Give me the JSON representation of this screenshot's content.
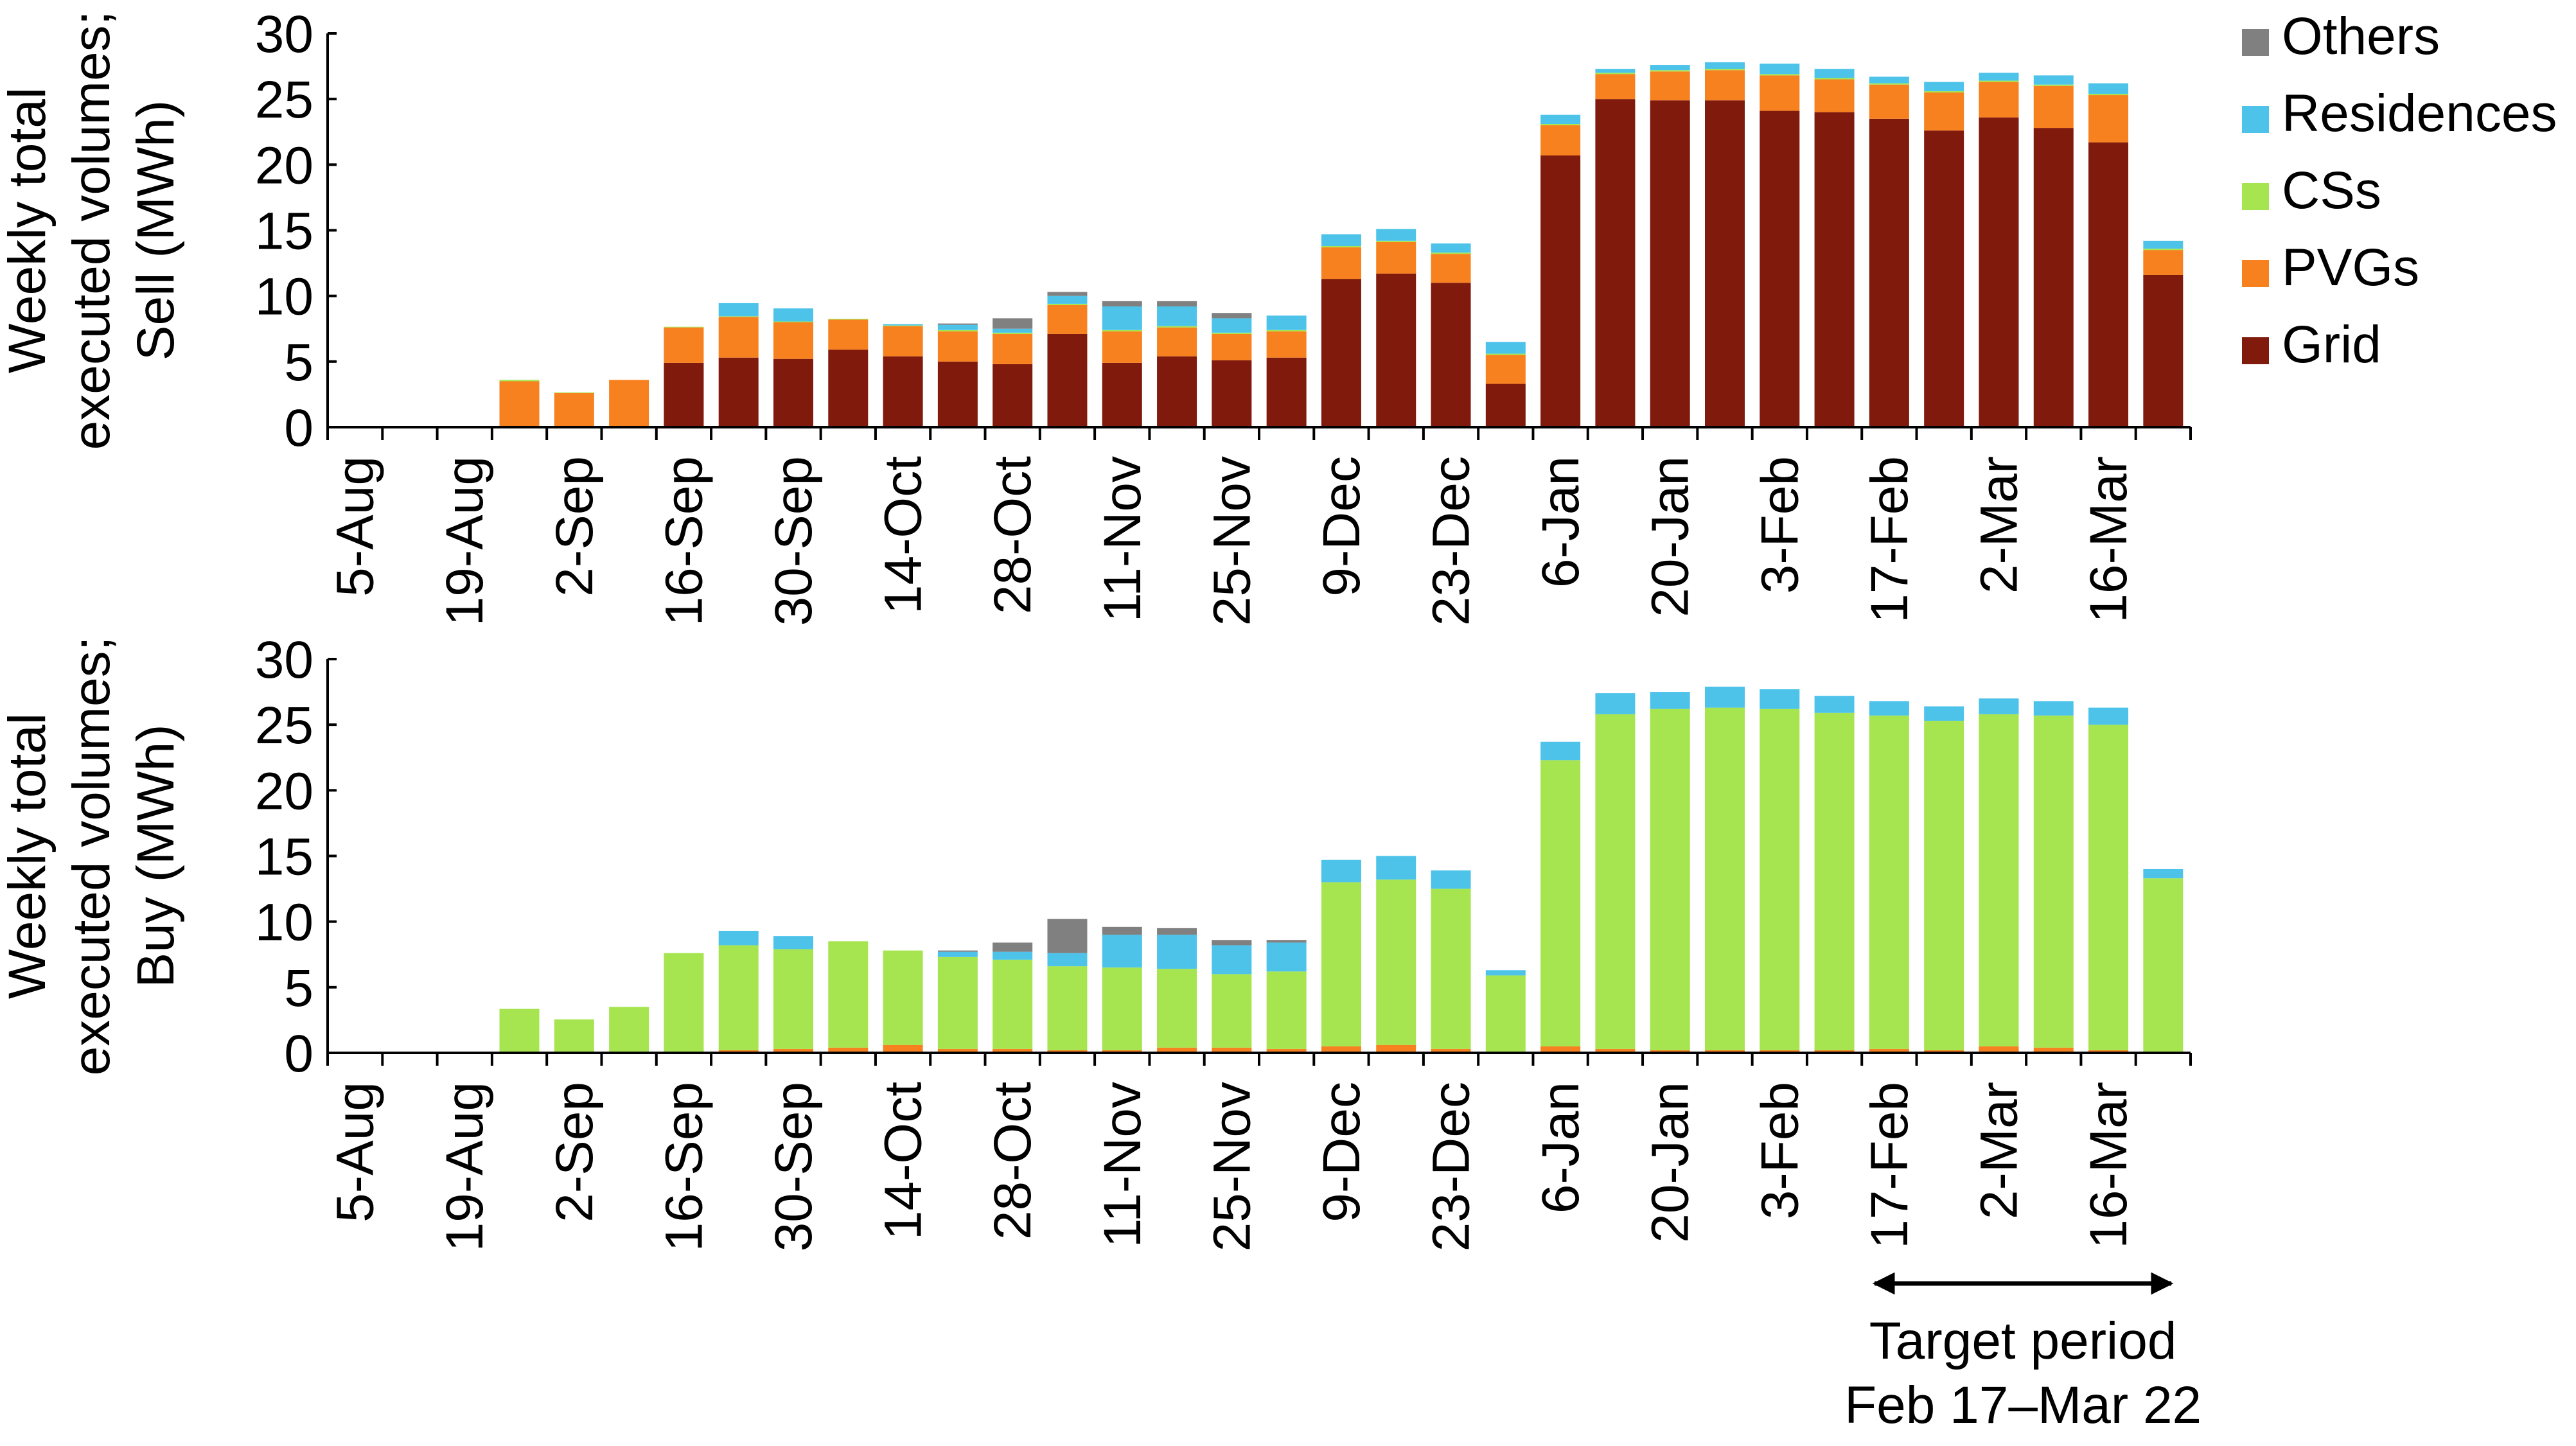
{
  "chart_data": [
    {
      "type": "bar",
      "stacked": true,
      "title": "",
      "ylabel": "Weekly total executed volumes; Sell (MWh)",
      "ylabel_lines": [
        "Weekly total",
        "executed volumes;",
        "Sell (MWh)"
      ],
      "xlabel": "",
      "ylim": [
        0,
        30
      ],
      "yticks": [
        0,
        5,
        10,
        15,
        20,
        25,
        30
      ],
      "weeks": 34,
      "xtick_labels": [
        {
          "week": 0,
          "label": "5-Aug"
        },
        {
          "week": 2,
          "label": "19-Aug"
        },
        {
          "week": 4,
          "label": "2-Sep"
        },
        {
          "week": 6,
          "label": "16-Sep"
        },
        {
          "week": 8,
          "label": "30-Sep"
        },
        {
          "week": 10,
          "label": "14-Oct"
        },
        {
          "week": 12,
          "label": "28-Oct"
        },
        {
          "week": 14,
          "label": "11-Nov"
        },
        {
          "week": 16,
          "label": "25-Nov"
        },
        {
          "week": 18,
          "label": "9-Dec"
        },
        {
          "week": 20,
          "label": "23-Dec"
        },
        {
          "week": 22,
          "label": "6-Jan"
        },
        {
          "week": 24,
          "label": "20-Jan"
        },
        {
          "week": 26,
          "label": "3-Feb"
        },
        {
          "week": 28,
          "label": "17-Feb"
        },
        {
          "week": 30,
          "label": "2-Mar"
        },
        {
          "week": 32,
          "label": "16-Mar"
        }
      ],
      "series": [
        {
          "name": "Grid",
          "color": "#7f1a0c",
          "values": [
            0,
            0,
            0,
            0,
            0,
            0,
            4.9,
            5.3,
            5.2,
            5.9,
            5.4,
            5.0,
            4.8,
            7.1,
            4.9,
            5.4,
            5.1,
            5.3,
            11.3,
            11.7,
            11.0,
            3.3,
            20.7,
            25.0,
            24.9,
            24.9,
            24.1,
            24.0,
            23.5,
            22.6,
            23.6,
            22.8,
            21.7,
            11.6
          ]
        },
        {
          "name": "PVGs",
          "color": "#f7801f",
          "values": [
            0,
            0,
            0,
            3.5,
            2.6,
            3.6,
            2.7,
            3.1,
            2.8,
            2.3,
            2.3,
            2.3,
            2.3,
            2.2,
            2.4,
            2.2,
            2.0,
            2.0,
            2.4,
            2.4,
            2.2,
            2.2,
            2.3,
            1.9,
            2.2,
            2.3,
            2.7,
            2.5,
            2.6,
            2.9,
            2.7,
            3.2,
            3.6,
            1.9
          ]
        },
        {
          "name": "CSs",
          "color": "#a6e54f",
          "values": [
            0,
            0,
            0,
            0.1,
            0.05,
            0,
            0.05,
            0.05,
            0.05,
            0.05,
            0.05,
            0.1,
            0.1,
            0.1,
            0.1,
            0.1,
            0.1,
            0.1,
            0.1,
            0.1,
            0.1,
            0.1,
            0.1,
            0.1,
            0.1,
            0.1,
            0.1,
            0.1,
            0.1,
            0.1,
            0.1,
            0.1,
            0.1,
            0.1
          ]
        },
        {
          "name": "Residences",
          "color": "#4ec3ea",
          "values": [
            0,
            0,
            0,
            0,
            0,
            0,
            0,
            1.0,
            1.0,
            0,
            0.1,
            0.4,
            0.3,
            0.6,
            1.8,
            1.5,
            1.1,
            1.1,
            0.9,
            0.9,
            0.7,
            0.9,
            0.7,
            0.3,
            0.4,
            0.5,
            0.8,
            0.7,
            0.5,
            0.7,
            0.6,
            0.7,
            0.8,
            0.6
          ]
        },
        {
          "name": "Others",
          "color": "#808080",
          "values": [
            0,
            0,
            0,
            0,
            0,
            0,
            0,
            0,
            0,
            0,
            0,
            0.1,
            0.8,
            0.3,
            0.4,
            0.4,
            0.4,
            0,
            0,
            0,
            0,
            0,
            0,
            0,
            0,
            0,
            0,
            0,
            0,
            0,
            0,
            0,
            0,
            0
          ]
        }
      ]
    },
    {
      "type": "bar",
      "stacked": true,
      "title": "",
      "ylabel": "Weekly total executed volumes; Buy (MWh)",
      "ylabel_lines": [
        "Weekly total",
        "executed volumes;",
        "Buy (MWh)"
      ],
      "xlabel": "",
      "ylim": [
        0,
        30
      ],
      "yticks": [
        0,
        5,
        10,
        15,
        20,
        25,
        30
      ],
      "weeks": 34,
      "xtick_labels": [
        {
          "week": 0,
          "label": "5-Aug"
        },
        {
          "week": 2,
          "label": "19-Aug"
        },
        {
          "week": 4,
          "label": "2-Sep"
        },
        {
          "week": 6,
          "label": "16-Sep"
        },
        {
          "week": 8,
          "label": "30-Sep"
        },
        {
          "week": 10,
          "label": "14-Oct"
        },
        {
          "week": 12,
          "label": "28-Oct"
        },
        {
          "week": 14,
          "label": "11-Nov"
        },
        {
          "week": 16,
          "label": "25-Nov"
        },
        {
          "week": 18,
          "label": "9-Dec"
        },
        {
          "week": 20,
          "label": "23-Dec"
        },
        {
          "week": 22,
          "label": "6-Jan"
        },
        {
          "week": 24,
          "label": "20-Jan"
        },
        {
          "week": 26,
          "label": "3-Feb"
        },
        {
          "week": 28,
          "label": "17-Feb"
        },
        {
          "week": 30,
          "label": "2-Mar"
        },
        {
          "week": 32,
          "label": "16-Mar"
        }
      ],
      "series": [
        {
          "name": "Grid",
          "color": "#7f1a0c",
          "values": [
            0,
            0,
            0,
            0,
            0,
            0,
            0,
            0,
            0,
            0,
            0,
            0,
            0,
            0,
            0,
            0,
            0,
            0,
            0,
            0,
            0,
            0,
            0,
            0,
            0,
            0,
            0,
            0,
            0,
            0,
            0,
            0,
            0,
            0
          ]
        },
        {
          "name": "PVGs",
          "color": "#f7801f",
          "values": [
            0,
            0,
            0,
            0.05,
            0.05,
            0,
            0.1,
            0.2,
            0.3,
            0.4,
            0.6,
            0.3,
            0.3,
            0.2,
            0.2,
            0.4,
            0.4,
            0.3,
            0.5,
            0.6,
            0.3,
            0.1,
            0.5,
            0.3,
            0.2,
            0.2,
            0.2,
            0.2,
            0.3,
            0.2,
            0.5,
            0.4,
            0.2,
            0.1
          ]
        },
        {
          "name": "CSs",
          "color": "#a6e54f",
          "values": [
            0,
            0,
            0,
            3.3,
            2.5,
            3.5,
            7.5,
            8.0,
            7.6,
            8.1,
            7.2,
            7.0,
            6.8,
            6.4,
            6.3,
            6.0,
            5.6,
            5.9,
            12.5,
            12.6,
            12.2,
            5.8,
            21.8,
            25.5,
            26.0,
            26.1,
            26.0,
            25.7,
            25.4,
            25.1,
            25.3,
            25.3,
            24.8,
            13.2
          ]
        },
        {
          "name": "Residences",
          "color": "#4ec3ea",
          "values": [
            0,
            0,
            0,
            0,
            0,
            0,
            0,
            1.1,
            1.0,
            0,
            0,
            0.4,
            0.6,
            1.0,
            2.5,
            2.6,
            2.2,
            2.2,
            1.7,
            1.8,
            1.4,
            0.4,
            1.4,
            1.6,
            1.3,
            1.6,
            1.5,
            1.3,
            1.1,
            1.1,
            1.2,
            1.1,
            1.3,
            0.7
          ]
        },
        {
          "name": "Others",
          "color": "#808080",
          "values": [
            0,
            0,
            0,
            0,
            0,
            0,
            0,
            0,
            0,
            0,
            0,
            0.1,
            0.7,
            2.6,
            0.6,
            0.5,
            0.4,
            0.2,
            0,
            0,
            0,
            0,
            0,
            0,
            0,
            0,
            0,
            0,
            0,
            0,
            0,
            0,
            0,
            0
          ]
        }
      ]
    }
  ],
  "legend": {
    "position": "top-right",
    "order": [
      "Others",
      "Residences",
      "CSs",
      "PVGs",
      "Grid"
    ]
  },
  "annotation": {
    "line1": "Target period",
    "line2": "Feb 17–Mar 22",
    "start_week": 28,
    "end_week": 33
  }
}
